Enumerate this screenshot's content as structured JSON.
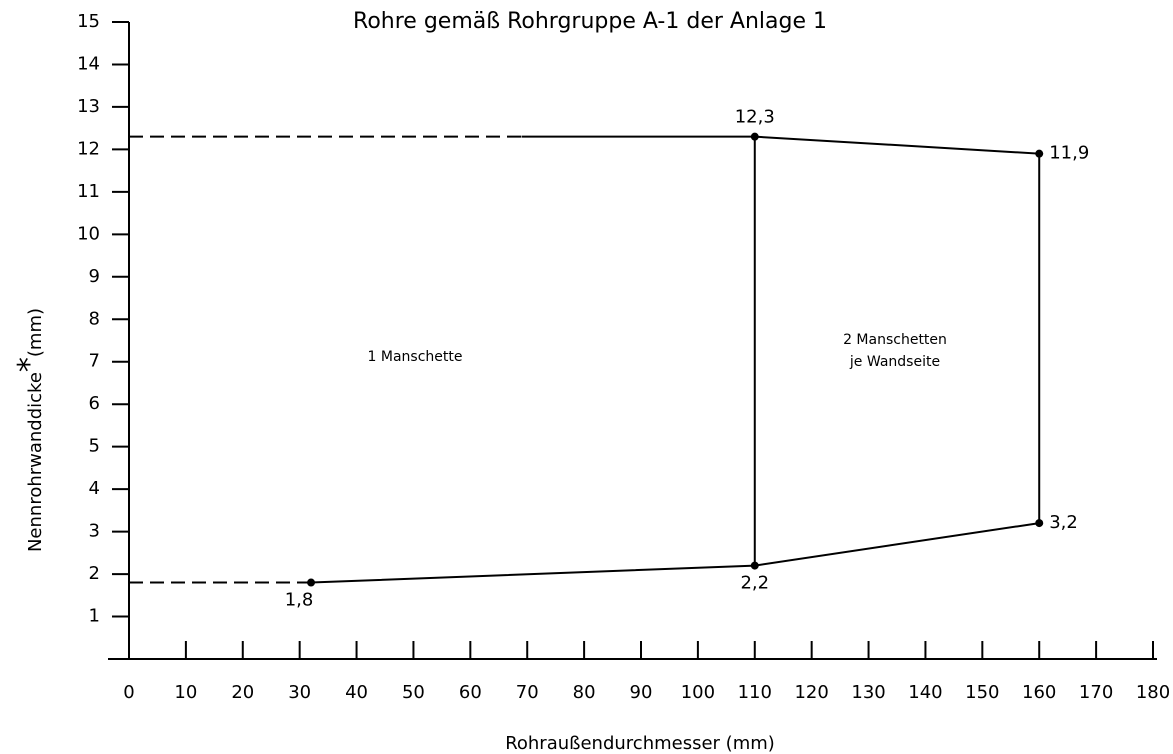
{
  "chart_data": {
    "type": "line",
    "title": "Rohre gemäß Rohrgruppe A-1 der Anlage 1",
    "xlabel": "Rohraußendurchmesser (mm)",
    "ylabel": {
      "text": "Nennrohrwanddicke",
      "mark": "*",
      "unit": "(mm)"
    },
    "xlim": [
      0,
      180
    ],
    "xticks": [
      0,
      10,
      20,
      30,
      40,
      50,
      60,
      70,
      80,
      90,
      100,
      110,
      120,
      130,
      140,
      150,
      160,
      170,
      180
    ],
    "ylim": [
      0,
      15
    ],
    "yticks": [
      1,
      2,
      3,
      4,
      5,
      6,
      7,
      8,
      9,
      10,
      11,
      12,
      13,
      14,
      15
    ],
    "color": "#000000",
    "series": [
      {
        "style": "solid",
        "x": [
          32,
          110,
          160,
          160,
          110,
          69
        ],
        "values": [
          1.8,
          2.2,
          3.2,
          11.9,
          12.3,
          12.3
        ]
      },
      {
        "style": "solid",
        "x": [
          110,
          110
        ],
        "values": [
          2.2,
          12.3
        ]
      },
      {
        "style": "dashed",
        "x": [
          0,
          69
        ],
        "values": [
          12.3,
          12.3
        ]
      },
      {
        "style": "dashed",
        "x": [
          0,
          32
        ],
        "values": [
          1.8,
          1.8
        ]
      }
    ],
    "points": {
      "x": [
        32,
        110,
        110,
        160,
        160
      ],
      "values": [
        1.8,
        2.2,
        12.3,
        11.9,
        3.2
      ],
      "value_labels": [
        "1,8",
        "2,2",
        "12,3",
        "11,9",
        "3,2"
      ]
    },
    "annotations": [
      "1 Manschette",
      "2 Manschetten",
      "je Wandseite"
    ]
  }
}
